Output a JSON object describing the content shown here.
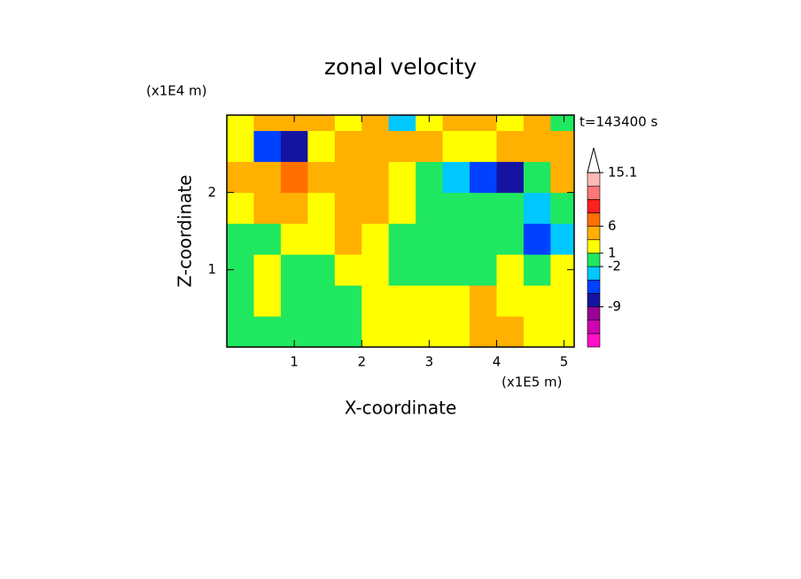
{
  "chart_data": {
    "type": "contour",
    "title": "zonal velocity",
    "y_unit": "(x1E4 m)",
    "x_unit": "(x1E5 m)",
    "annotation": "t=143400 s",
    "xlabel": "X-coordinate",
    "ylabel": "Z-coordinate",
    "xlim": [
      0,
      5.15
    ],
    "ylim": [
      0,
      3
    ],
    "xticks": [
      1,
      2,
      3,
      4,
      5
    ],
    "yticks": [
      1,
      2
    ],
    "x": [
      0.2,
      0.6,
      1.0,
      1.4,
      1.8,
      2.2,
      2.6,
      3.0,
      3.4,
      3.8,
      4.2,
      4.6,
      5.0
    ],
    "y": [
      0.2,
      0.6,
      1.0,
      1.4,
      1.8,
      2.2,
      2.6,
      3.0
    ],
    "z": [
      [
        -1,
        0,
        0,
        -1,
        0,
        1,
        2,
        2,
        2,
        3,
        3,
        2,
        1
      ],
      [
        0,
        1,
        -1,
        0,
        0,
        1,
        2,
        2,
        2,
        3,
        2,
        2,
        1
      ],
      [
        -1,
        2,
        0,
        0,
        2,
        1,
        0,
        0,
        0,
        0,
        1,
        0,
        2
      ],
      [
        0,
        -1,
        2,
        1,
        3,
        2,
        0,
        0,
        -1,
        0,
        0,
        -5,
        -3
      ],
      [
        2,
        4,
        3,
        2,
        4,
        3,
        1,
        0,
        -1,
        0,
        -2,
        -4,
        -2
      ],
      [
        3,
        5,
        6,
        4,
        5,
        3,
        2,
        -1,
        -3,
        -5,
        -7,
        -1,
        3
      ],
      [
        1,
        -6,
        -7,
        2,
        4,
        3,
        5,
        4,
        2,
        1,
        3,
        4,
        5
      ],
      [
        2,
        4,
        5,
        3,
        1,
        4,
        -3,
        2,
        5,
        4,
        1,
        3,
        -1
      ]
    ],
    "colorbar": {
      "levels": [
        -20,
        -16,
        -12,
        -9,
        -6,
        -4,
        -2,
        1,
        3,
        6,
        8,
        10,
        12,
        15.1
      ],
      "colors": [
        "#ff10c8",
        "#d000b0",
        "#980098",
        "#1414a0",
        "#0040ff",
        "#00c8ff",
        "#20e860",
        "#ffff00",
        "#ffb000",
        "#ff7000",
        "#ff2020",
        "#ff7878",
        "#ffb8b8"
      ],
      "ticks": [
        15.1,
        6,
        1,
        -2,
        -9
      ]
    }
  }
}
